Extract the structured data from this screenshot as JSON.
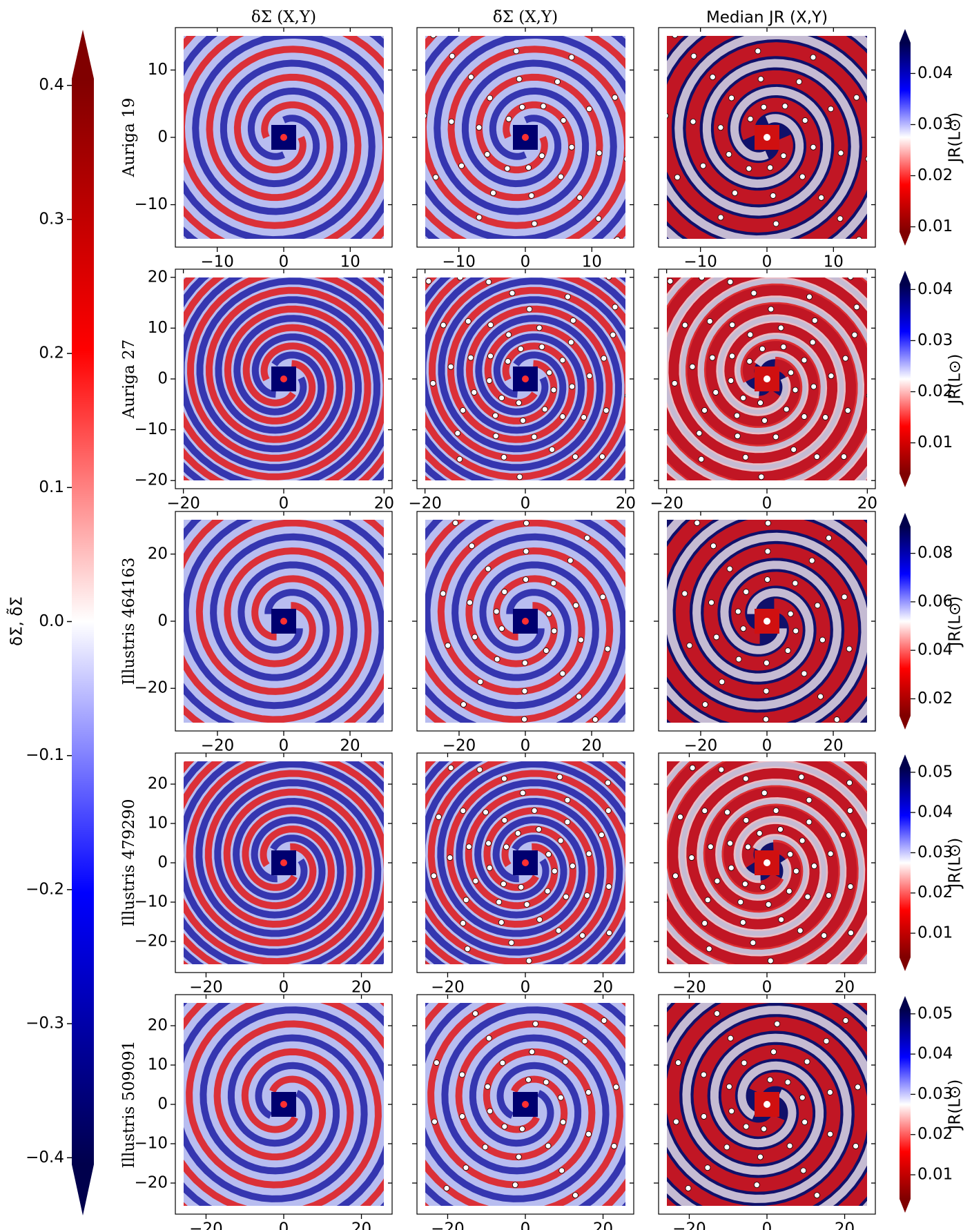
{
  "chart_data": {
    "type": "map-grid",
    "column_titles": [
      "δΣ (X,Y)",
      "δ̃Σ (X,Y)",
      "Median JR (X,Y)"
    ],
    "main_colorbar": {
      "label": "δΣ,  δ̃Σ",
      "ylim": [
        -0.405,
        0.405
      ],
      "yticks": [
        {
          "value": -0.4,
          "label": "−0.4"
        },
        {
          "value": -0.3,
          "label": "−0.3"
        },
        {
          "value": -0.2,
          "label": "−0.2"
        },
        {
          "value": -0.1,
          "label": "−0.1"
        },
        {
          "value": 0,
          "label": "0.0"
        },
        0.1,
        0.2,
        0.3,
        0.4
      ]
    },
    "rows": [
      {
        "label": "Auriga 19",
        "xlim": [
          -16.3,
          16.3
        ],
        "ylim": [
          -16.3,
          16.3
        ],
        "xticks": [
          {
            "value": -10,
            "label": "−10"
          },
          0,
          10
        ],
        "yticks": [
          {
            "value": -10,
            "label": "−10"
          },
          0,
          10
        ],
        "colorbar": {
          "label": "JR(L⊙)",
          "ylim": [
            0.009,
            0.046
          ],
          "yticks": [
            0.01,
            0.02,
            0.03,
            0.04
          ]
        }
      },
      {
        "label": "Auriga 27",
        "xlim": [
          -21.6,
          21.6
        ],
        "ylim": [
          -21.6,
          21.6
        ],
        "xticks": [
          {
            "value": -20,
            "label": "−20"
          },
          0,
          20
        ],
        "yticks": [
          {
            "value": -20,
            "label": "−20"
          },
          {
            "value": -10,
            "label": "−10"
          },
          0,
          10,
          20
        ],
        "colorbar": {
          "label": "JR(L⊙)",
          "ylim": [
            0.004,
            0.041
          ],
          "yticks": [
            0.01,
            0.02,
            0.03,
            0.04
          ]
        }
      },
      {
        "label": "Illustris 464163",
        "xlim": [
          -32.7,
          32.7
        ],
        "ylim": [
          -32.7,
          32.7
        ],
        "xticks": [
          {
            "value": -20,
            "label": "−20"
          },
          0,
          20
        ],
        "yticks": [
          {
            "value": -20,
            "label": "−20"
          },
          0,
          20
        ],
        "colorbar": {
          "label": "JR(L⊙)",
          "ylim": [
            0.013,
            0.091
          ],
          "yticks": [
            0.02,
            0.04,
            0.06,
            0.08
          ]
        }
      },
      {
        "label": "Illustris 479290",
        "xlim": [
          -27.9,
          27.9
        ],
        "ylim": [
          -27.9,
          27.9
        ],
        "xticks": [
          {
            "value": -20,
            "label": "−20"
          },
          0,
          20
        ],
        "yticks": [
          {
            "value": -20,
            "label": "−20"
          },
          {
            "value": -10,
            "label": "−10"
          },
          0,
          10,
          20
        ],
        "colorbar": {
          "label": "JR(L⊙)",
          "ylim": [
            0.004,
            0.051
          ],
          "yticks": [
            0.01,
            0.02,
            0.03,
            0.04,
            0.05
          ]
        }
      },
      {
        "label": "Illustris 509091",
        "xlim": [
          -27.9,
          27.9
        ],
        "ylim": [
          -27.9,
          27.9
        ],
        "xticks": [
          {
            "value": -20,
            "label": "−20"
          },
          0,
          20
        ],
        "yticks": [
          {
            "value": -20,
            "label": "−20"
          },
          {
            "value": -10,
            "label": "−10"
          },
          0,
          10,
          20
        ],
        "colorbar": {
          "label": "JR(L⊙)",
          "ylim": [
            0.004,
            0.051
          ],
          "yticks": [
            0.01,
            0.02,
            0.03,
            0.04,
            0.05
          ]
        }
      }
    ]
  }
}
